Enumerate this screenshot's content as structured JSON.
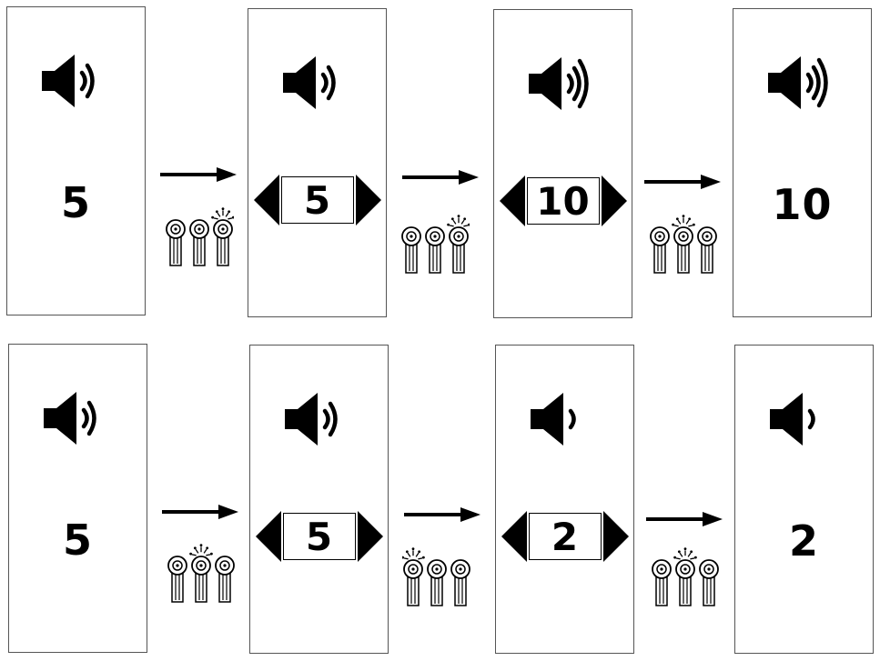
{
  "rows": [
    {
      "name": "volume-up-sequence",
      "states": [
        {
          "value": "5",
          "speaker_level": 2,
          "selector": false
        },
        {
          "value": "5",
          "speaker_level": 2,
          "selector": true
        },
        {
          "value": "10",
          "speaker_level": 3,
          "selector": true
        },
        {
          "value": "10",
          "speaker_level": 3,
          "selector": false
        }
      ],
      "pressed_button": [
        3,
        3,
        2
      ]
    },
    {
      "name": "volume-down-sequence",
      "states": [
        {
          "value": "5",
          "speaker_level": 2,
          "selector": false
        },
        {
          "value": "5",
          "speaker_level": 2,
          "selector": true
        },
        {
          "value": "2",
          "speaker_level": 1,
          "selector": true
        },
        {
          "value": "2",
          "speaker_level": 1,
          "selector": false
        }
      ],
      "pressed_button": [
        2,
        1,
        2
      ]
    }
  ],
  "icons": {
    "speaker": "speaker-icon",
    "arrow": "right-arrow-icon",
    "keys": "three-key-remote-icon",
    "selector_left": "left-triangle-icon",
    "selector_right": "right-triangle-icon"
  },
  "colors": {
    "ink": "#000000",
    "panel_border": "#555555",
    "background": "#ffffff"
  }
}
